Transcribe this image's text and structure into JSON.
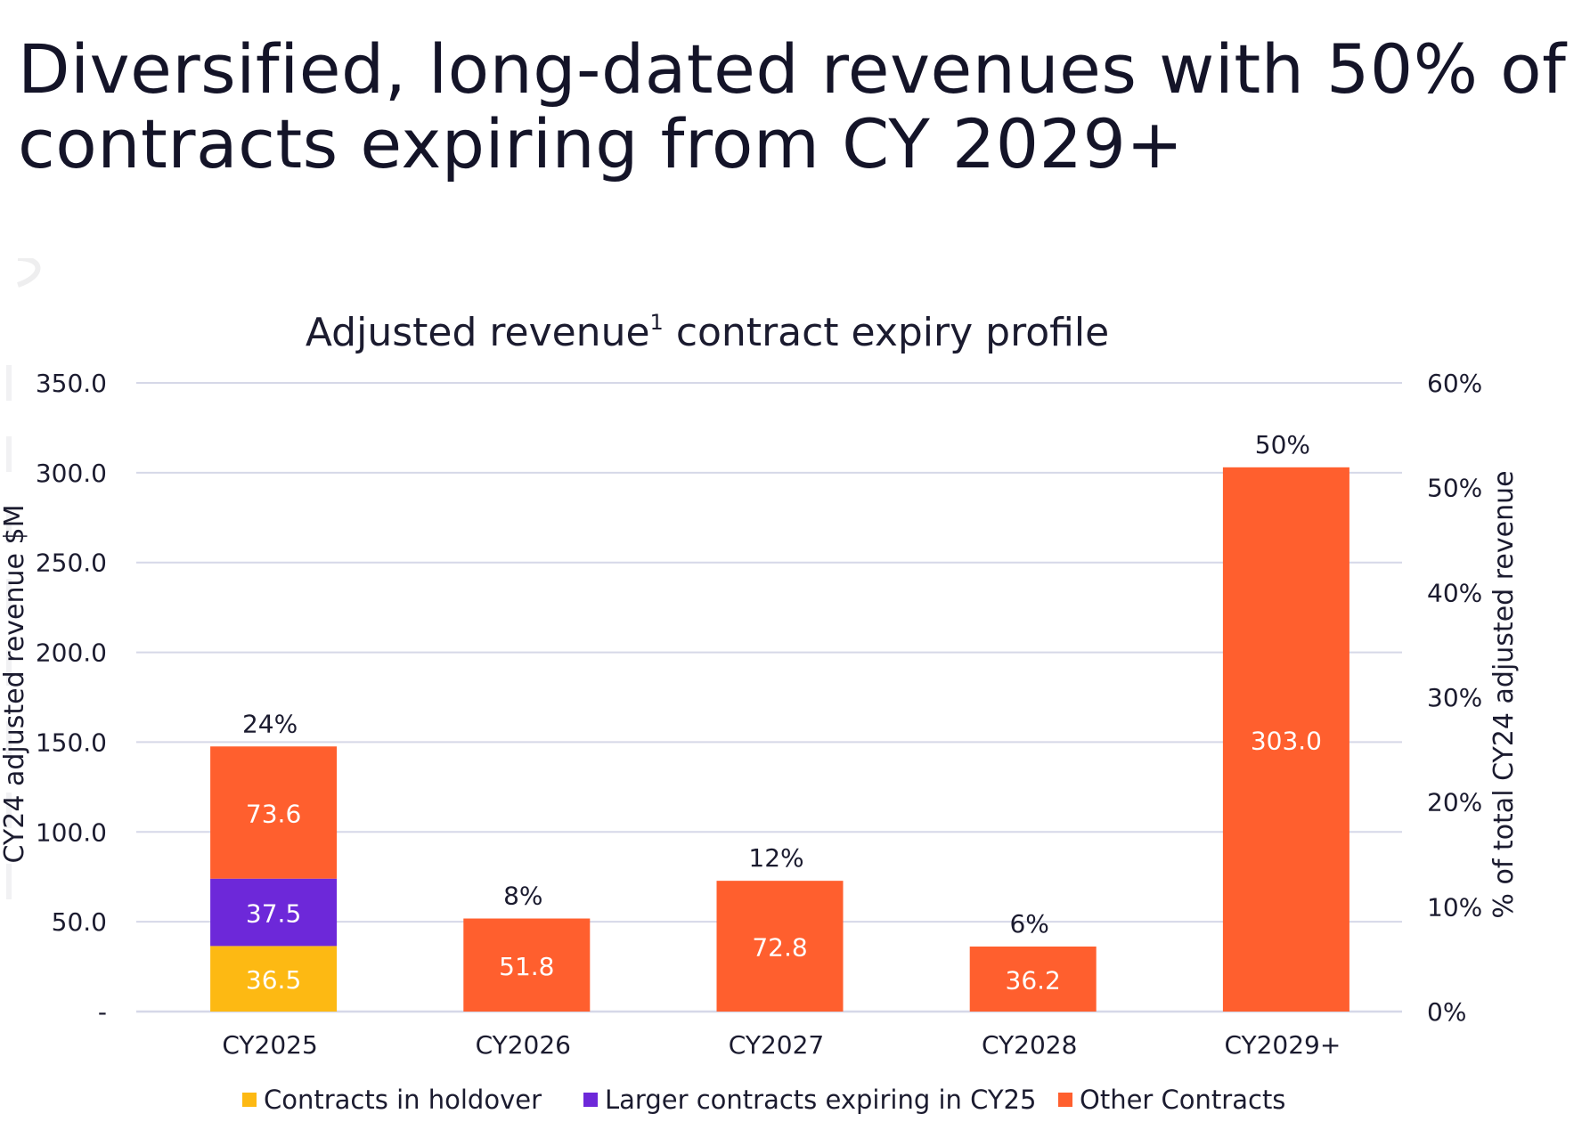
{
  "page": {
    "headline": "Diversified, long-dated revenues with 50% of contracts expiring from CY 2029+"
  },
  "chart_data": {
    "type": "bar",
    "stacked": true,
    "title": "Adjusted revenue",
    "title_superscript": "1",
    "title_suffix": "contract expiry profile",
    "categories": [
      "CY2025",
      "CY2026",
      "CY2027",
      "CY2028",
      "CY2029+"
    ],
    "series": [
      {
        "name": "Contracts in holdover",
        "color": "#FDB913",
        "values": [
          36.5,
          0,
          0,
          0,
          0
        ],
        "labels": [
          "36.5",
          "",
          "",
          "",
          ""
        ]
      },
      {
        "name": "Larger contracts expiring in CY25",
        "color": "#6D28D9",
        "values": [
          37.5,
          0,
          0,
          0,
          0
        ],
        "labels": [
          "37.5",
          "",
          "",
          "",
          ""
        ]
      },
      {
        "name": "Other Contracts",
        "color": "#FF5F2E",
        "values": [
          73.6,
          51.8,
          72.8,
          36.2,
          303.0
        ],
        "labels": [
          "73.6",
          "51.8",
          "72.8",
          "36.2",
          "303.0"
        ]
      }
    ],
    "totals_pct_labels": [
      "24%",
      "8%",
      "12%",
      "6%",
      "50%"
    ],
    "ylabel": "CY24 adjusted revenue $M",
    "y2label": "% of total CY24 adjusted revenue",
    "ylim": [
      0,
      350
    ],
    "y_ticks": [
      0,
      50,
      100,
      150,
      200,
      250,
      300,
      350
    ],
    "y_tick_labels": [
      "-",
      "50.0",
      "100.0",
      "150.0",
      "200.0",
      "250.0",
      "300.0",
      "350.0"
    ],
    "y2lim": [
      0,
      60
    ],
    "y2_ticks": [
      0,
      10,
      20,
      30,
      40,
      50,
      60
    ],
    "y2_tick_labels": [
      "0%",
      "10%",
      "20%",
      "30%",
      "40%",
      "50%",
      "60%"
    ],
    "grid": true,
    "legend_position": "bottom",
    "colors": {
      "grid": "#d6d8e8",
      "text": "#1b1b2f",
      "bar_label": "#ffffff"
    }
  }
}
